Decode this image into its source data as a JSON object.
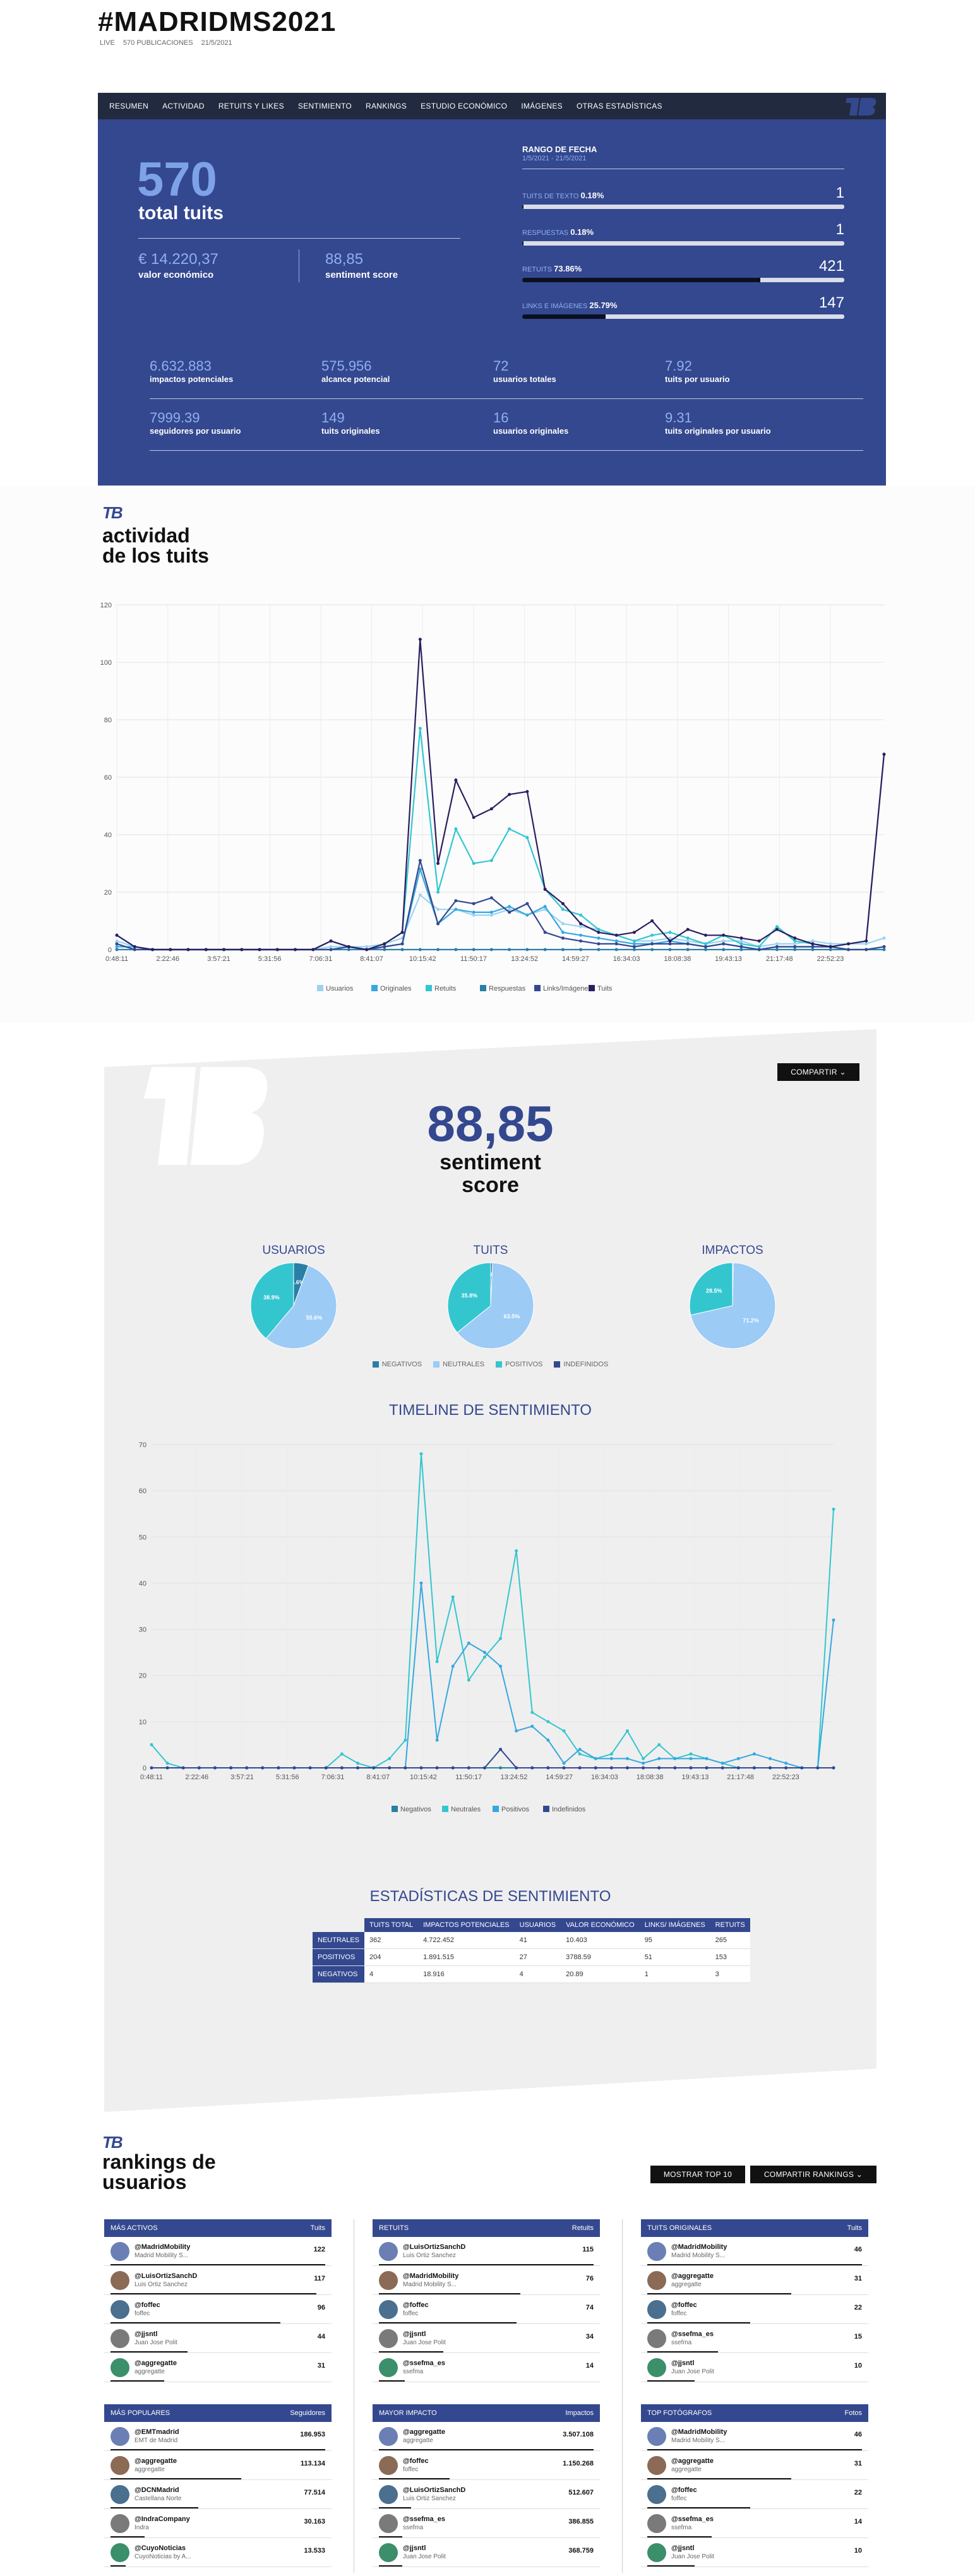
{
  "header": {
    "title": "#MADRIDMS2021",
    "meta": [
      "LIVE",
      "570 PUBLICACIONES",
      "21/5/2021"
    ]
  },
  "nav": {
    "items": [
      "RESUMEN",
      "ACTIVIDAD",
      "RETUITS Y LIKES",
      "SENTIMIENTO",
      "RANKINGS",
      "ESTUDIO ECONÓMICO",
      "IMÁGENES",
      "OTRAS ESTADÍSTICAS"
    ]
  },
  "summary": {
    "total_value": "570",
    "total_label": "total tuits",
    "economic_value": "14.220,37",
    "economic_label": "valor económico",
    "sentiment_value": "88,85",
    "sentiment_label": "sentiment score",
    "date_range_label": "RANGO DE FECHA",
    "date_range_value": "1/5/2021 - 21/5/2021",
    "bars": [
      {
        "label": "TUITS DE TEXTO",
        "pct": "0.18%",
        "fraction": 0.0018,
        "value": "1"
      },
      {
        "label": "RESPUESTAS",
        "pct": "0.18%",
        "fraction": 0.0018,
        "value": "1"
      },
      {
        "label": "RETUITS",
        "pct": "73.86%",
        "fraction": 0.7386,
        "value": "421"
      },
      {
        "label": "LINKS E IMÁGENES",
        "pct": "25.79%",
        "fraction": 0.2579,
        "value": "147"
      }
    ],
    "stats_row1": [
      {
        "value": "6.632.883",
        "label": "impactos potenciales"
      },
      {
        "value": "575.956",
        "label": "alcance potencial"
      },
      {
        "value": "72",
        "label": "usuarios totales"
      },
      {
        "value": "7.92",
        "label": "tuits por usuario"
      }
    ],
    "stats_row2": [
      {
        "value": "7999.39",
        "label": "seguidores por usuario"
      },
      {
        "value": "149",
        "label": "tuits originales"
      },
      {
        "value": "16",
        "label": "usuarios originales"
      },
      {
        "value": "9.31",
        "label": "tuits originales por usuario"
      }
    ]
  },
  "activity": {
    "title_line1": "actividad",
    "title_line2": "de los tuits",
    "logo": "TB"
  },
  "chart_data": [
    {
      "type": "line",
      "ylim": [
        0,
        120
      ],
      "yticks": [
        0,
        20,
        40,
        60,
        80,
        100,
        120
      ],
      "x_labels": [
        "0:48:11",
        "2:22:46",
        "3:57:21",
        "5:31:56",
        "7:06:31",
        "8:41:07",
        "10:15:42",
        "11:50:17",
        "13:24:52",
        "14:59:27",
        "16:34:03",
        "18:08:38",
        "19:43:13",
        "21:17:48",
        "22:52:23"
      ],
      "n_points": 44,
      "series": [
        {
          "name": "Usuarios",
          "color": "#9dd3f0",
          "values": [
            3,
            1,
            0,
            0,
            0,
            0,
            0,
            0,
            0,
            0,
            0,
            0,
            1,
            1,
            1,
            2,
            4,
            19,
            14,
            14,
            12,
            12,
            14,
            12,
            14,
            9,
            8,
            7,
            5,
            3,
            3,
            4,
            3,
            2,
            3,
            3,
            1,
            2,
            2,
            3,
            2,
            2,
            2,
            4
          ]
        },
        {
          "name": "Originales",
          "color": "#35a8e0",
          "values": [
            1,
            1,
            0,
            0,
            0,
            0,
            0,
            0,
            0,
            0,
            0,
            0,
            0,
            1,
            0,
            1,
            2,
            28,
            9,
            14,
            13,
            13,
            15,
            12,
            15,
            6,
            5,
            4,
            3,
            2,
            2,
            3,
            2,
            1,
            2,
            1,
            0,
            1,
            1,
            1,
            1,
            0,
            0,
            1
          ]
        },
        {
          "name": "Retuits",
          "color": "#34c6cf",
          "values": [
            5,
            1,
            0,
            0,
            0,
            0,
            0,
            0,
            0,
            0,
            0,
            0,
            3,
            1,
            0,
            2,
            6,
            77,
            20,
            42,
            30,
            31,
            42,
            39,
            21,
            14,
            12,
            7,
            5,
            3,
            5,
            6,
            4,
            2,
            5,
            2,
            1,
            8,
            3,
            2,
            1,
            2,
            3,
            68
          ]
        },
        {
          "name": "Respuestas",
          "color": "#2a7fa6",
          "values": [
            0,
            0,
            0,
            0,
            0,
            0,
            0,
            0,
            0,
            0,
            0,
            0,
            0,
            0,
            0,
            0,
            0,
            0,
            0,
            0,
            0,
            0,
            0,
            0,
            0,
            0,
            0,
            0,
            0,
            0,
            0,
            0,
            0,
            0,
            0,
            0,
            0,
            0,
            0,
            0,
            0,
            0,
            0,
            0
          ]
        },
        {
          "name": "Links/Imágenes",
          "color": "#34488f",
          "values": [
            2,
            0,
            0,
            0,
            0,
            0,
            0,
            0,
            0,
            0,
            0,
            0,
            0,
            1,
            0,
            1,
            2,
            31,
            9,
            17,
            16,
            18,
            13,
            16,
            6,
            4,
            3,
            2,
            2,
            1,
            2,
            2,
            2,
            1,
            2,
            1,
            0,
            1,
            1,
            1,
            1,
            0,
            0,
            1
          ]
        },
        {
          "name": "Tuits",
          "color": "#2c1e5e",
          "values": [
            5,
            1,
            0,
            0,
            0,
            0,
            0,
            0,
            0,
            0,
            0,
            0,
            3,
            1,
            0,
            2,
            6,
            108,
            30,
            59,
            46,
            49,
            54,
            55,
            21,
            16,
            9,
            6,
            5,
            6,
            10,
            3,
            7,
            5,
            5,
            4,
            3,
            7,
            4,
            2,
            1,
            2,
            3,
            68
          ]
        }
      ]
    },
    {
      "type": "pie",
      "title": "USUARIOS",
      "slices": [
        {
          "name": "NEGATIVOS",
          "value": 5.6,
          "label": "5.6%"
        },
        {
          "name": "NEUTRALES",
          "value": 55.6,
          "label": "55.6%"
        },
        {
          "name": "POSITIVOS",
          "value": 38.9,
          "label": "38.9%"
        }
      ]
    },
    {
      "type": "pie",
      "title": "TUITS",
      "slices": [
        {
          "name": "NEGATIVOS",
          "value": 0.7,
          "label": "0.7%"
        },
        {
          "name": "NEUTRALES",
          "value": 63.5,
          "label": "63.5%"
        },
        {
          "name": "POSITIVOS",
          "value": 35.8,
          "label": "35.8%"
        }
      ]
    },
    {
      "type": "pie",
      "title": "IMPACTOS",
      "slices": [
        {
          "name": "NEGATIVOS",
          "value": 0.3,
          "label": "0.3%"
        },
        {
          "name": "NEUTRALES",
          "value": 71.2,
          "label": "71.2%"
        },
        {
          "name": "POSITIVOS",
          "value": 28.5,
          "label": "28.5%"
        }
      ]
    },
    {
      "type": "line",
      "title": "TIMELINE DE SENTIMIENTO",
      "ylim": [
        0,
        70
      ],
      "yticks": [
        0,
        10,
        20,
        30,
        40,
        50,
        60,
        70
      ],
      "x_labels": [
        "0:48:11",
        "2:22:46",
        "3:57:21",
        "5:31:56",
        "7:06:31",
        "8:41:07",
        "10:15:42",
        "11:50:17",
        "13:24:52",
        "14:59:27",
        "16:34:03",
        "18:08:38",
        "19:43:13",
        "21:17:48",
        "22:52:23"
      ],
      "n_points": 44,
      "series": [
        {
          "name": "Negativos",
          "color": "#2a7fa6",
          "values": [
            0,
            0,
            0,
            0,
            0,
            0,
            0,
            0,
            0,
            0,
            0,
            0,
            0,
            0,
            0,
            0,
            0,
            0,
            0,
            0,
            0,
            0,
            0,
            0,
            0,
            0,
            0,
            0,
            0,
            0,
            0,
            0,
            0,
            0,
            0,
            0,
            0,
            0,
            0,
            0,
            0,
            0,
            0,
            0
          ]
        },
        {
          "name": "Neutrales",
          "color": "#34c6cf",
          "values": [
            5,
            1,
            0,
            0,
            0,
            0,
            0,
            0,
            0,
            0,
            0,
            0,
            3,
            1,
            0,
            2,
            6,
            68,
            23,
            37,
            19,
            24,
            28,
            47,
            12,
            10,
            8,
            3,
            2,
            3,
            8,
            2,
            5,
            2,
            3,
            2,
            1,
            0,
            0,
            0,
            0,
            0,
            0,
            56
          ]
        },
        {
          "name": "Positivos",
          "color": "#35a8e0",
          "values": [
            0,
            0,
            0,
            0,
            0,
            0,
            0,
            0,
            0,
            0,
            0,
            0,
            0,
            0,
            0,
            0,
            0,
            40,
            6,
            22,
            27,
            25,
            22,
            8,
            9,
            6,
            1,
            4,
            2,
            2,
            2,
            1,
            2,
            2,
            2,
            2,
            1,
            2,
            3,
            2,
            1,
            0,
            0,
            32
          ]
        },
        {
          "name": "Indefinidos",
          "color": "#34488f",
          "values": [
            0,
            0,
            0,
            0,
            0,
            0,
            0,
            0,
            0,
            0,
            0,
            0,
            0,
            0,
            0,
            0,
            0,
            0,
            0,
            0,
            0,
            0,
            4,
            0,
            0,
            0,
            0,
            0,
            0,
            0,
            0,
            0,
            0,
            0,
            0,
            0,
            0,
            0,
            0,
            0,
            0,
            0,
            0,
            0
          ]
        }
      ]
    },
    {
      "type": "table",
      "title": "ESTADÍSTICAS DE SENTIMIENTO",
      "columns": [
        "",
        "TUITS TOTAL",
        "IMPACTOS POTENCIALES",
        "USUARIOS",
        "VALOR ECONÓMICO",
        "LINKS/ IMÁGENES",
        "RETUITS"
      ],
      "rows": [
        [
          "NEUTRALES",
          "362",
          "4.722.452",
          "41",
          "10.403",
          "95",
          "265"
        ],
        [
          "POSITIVOS",
          "204",
          "1.891.515",
          "27",
          "3788.59",
          "51",
          "153"
        ],
        [
          "NEGATIVOS",
          "4",
          "18.916",
          "4",
          "20.89",
          "1",
          "3"
        ]
      ]
    }
  ],
  "sentiment": {
    "share_button": "COMPARTIR",
    "score": "88,85",
    "score_label_1": "sentiment",
    "score_label_2": "score",
    "pie_legend": [
      "NEGATIVOS",
      "NEUTRALES",
      "POSITIVOS",
      "INDEFINIDOS"
    ],
    "timeline_title": "TIMELINE DE SENTIMIENTO",
    "table_title": "ESTADÍSTICAS DE SENTIMIENTO"
  },
  "colors": {
    "brand": "#34488f",
    "nav": "#222a3f",
    "neg": "#2a7fa6",
    "neu": "#9ccbf5",
    "pos": "#34c6cf",
    "undef": "#34488f"
  },
  "rankings": {
    "title_line1": "rankings de",
    "title_line2": "usuarios",
    "btn_top10": "MOSTRAR TOP 10",
    "btn_share": "COMPARTIR RANKINGS",
    "cards": [
      {
        "title": "MÁS ACTIVOS",
        "metric": "Tuits",
        "rows": [
          {
            "user": "@MadridMobility",
            "name": "Madrid Mobility S...",
            "value": "122",
            "fraction": 1
          },
          {
            "user": "@LuisOrtizSanchD",
            "name": "Luis Ortiz Sanchez",
            "value": "117",
            "fraction": 0.96
          },
          {
            "user": "@foffec",
            "name": "foffec",
            "value": "96",
            "fraction": 0.79
          },
          {
            "user": "@jjsntl",
            "name": "Juan Jose Polit",
            "value": "44",
            "fraction": 0.36
          },
          {
            "user": "@aggregatte",
            "name": "aggregatte",
            "value": "31",
            "fraction": 0.25
          }
        ]
      },
      {
        "title": "RETUITS",
        "metric": "Retuits",
        "rows": [
          {
            "user": "@LuisOrtizSanchD",
            "name": "Luis Ortiz Sanchez",
            "value": "115",
            "fraction": 1
          },
          {
            "user": "@MadridMobility",
            "name": "Madrid Mobility S...",
            "value": "76",
            "fraction": 0.66
          },
          {
            "user": "@foffec",
            "name": "foffec",
            "value": "74",
            "fraction": 0.64
          },
          {
            "user": "@jjsntl",
            "name": "Juan Jose Polit",
            "value": "34",
            "fraction": 0.3
          },
          {
            "user": "@ssefma_es",
            "name": "ssefma",
            "value": "14",
            "fraction": 0.12
          }
        ]
      },
      {
        "title": "TUITS ORIGINALES",
        "metric": "Tuits",
        "rows": [
          {
            "user": "@MadridMobility",
            "name": "Madrid Mobility S...",
            "value": "46",
            "fraction": 1
          },
          {
            "user": "@aggregatte",
            "name": "aggregatte",
            "value": "31",
            "fraction": 0.67
          },
          {
            "user": "@foffec",
            "name": "foffec",
            "value": "22",
            "fraction": 0.48
          },
          {
            "user": "@ssefma_es",
            "name": "ssefma",
            "value": "15",
            "fraction": 0.33
          },
          {
            "user": "@jjsntl",
            "name": "Juan Jose Polit",
            "value": "10",
            "fraction": 0.22
          }
        ]
      },
      {
        "title": "MÁS POPULARES",
        "metric": "Seguidores",
        "rows": [
          {
            "user": "@EMTmadrid",
            "name": "EMT de Madrid",
            "value": "186.953",
            "fraction": 1
          },
          {
            "user": "@aggregatte",
            "name": "aggregatte",
            "value": "113.134",
            "fraction": 0.61
          },
          {
            "user": "@DCNMadrid",
            "name": "Castellana Norte",
            "value": "77.514",
            "fraction": 0.41
          },
          {
            "user": "@IndraCompany",
            "name": "Indra",
            "value": "30.163",
            "fraction": 0.16
          },
          {
            "user": "@CuyoNoticias",
            "name": "CuyoNoticias by A...",
            "value": "13.533",
            "fraction": 0.07
          }
        ]
      },
      {
        "title": "MAYOR IMPACTO",
        "metric": "Impactos",
        "rows": [
          {
            "user": "@aggregatte",
            "name": "aggregatte",
            "value": "3.507.108",
            "fraction": 1
          },
          {
            "user": "@foffec",
            "name": "foffec",
            "value": "1.150.268",
            "fraction": 0.33
          },
          {
            "user": "@LuisOrtizSanchD",
            "name": "Luis Ortiz Sanchez",
            "value": "512.607",
            "fraction": 0.15
          },
          {
            "user": "@ssefma_es",
            "name": "ssefma",
            "value": "386.855",
            "fraction": 0.11
          },
          {
            "user": "@jjsntl",
            "name": "Juan Jose Polit",
            "value": "368.759",
            "fraction": 0.11
          }
        ]
      },
      {
        "title": "TOP FOTÓGRAFOS",
        "metric": "Fotos",
        "rows": [
          {
            "user": "@MadridMobility",
            "name": "Madrid Mobility S...",
            "value": "46",
            "fraction": 1
          },
          {
            "user": "@aggregatte",
            "name": "aggregatte",
            "value": "31",
            "fraction": 0.67
          },
          {
            "user": "@foffec",
            "name": "foffec",
            "value": "22",
            "fraction": 0.48
          },
          {
            "user": "@ssefma_es",
            "name": "ssefma",
            "value": "14",
            "fraction": 0.3
          },
          {
            "user": "@jjsntl",
            "name": "Juan Jose Polit",
            "value": "10",
            "fraction": 0.22
          }
        ]
      }
    ]
  }
}
